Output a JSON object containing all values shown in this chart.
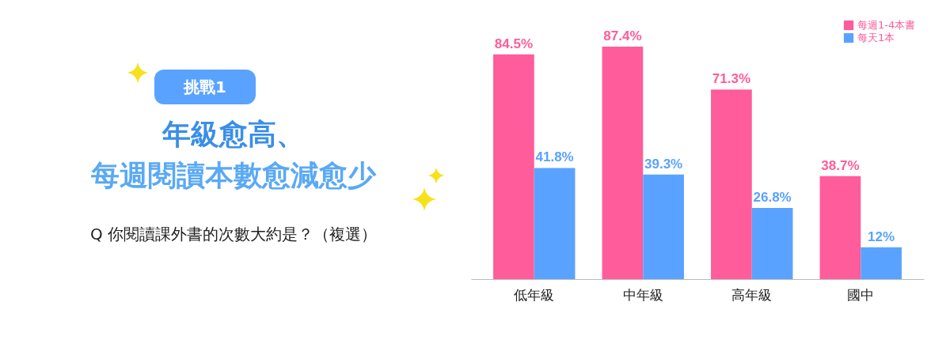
{
  "chart_data": {
    "type": "bar",
    "title": "年級愈高、",
    "subtitle": "每週閱讀本數愈減愈少",
    "annotations": [
      "挑戰1",
      "Q 你閱讀課外書的次數大約是？（複選）"
    ],
    "categories": [
      "低年級",
      "中年級",
      "高年級",
      "國中"
    ],
    "series": [
      {
        "name": "每週1-4本書",
        "color": "#ff5c9b",
        "values": [
          84.5,
          87.4,
          71.3,
          38.7
        ],
        "value_labels": [
          "84.5%",
          "87.4%",
          "71.3%",
          "38.7%"
        ]
      },
      {
        "name": "每天1本",
        "color": "#5aa2ff",
        "values": [
          41.8,
          39.3,
          26.8,
          12
        ],
        "value_labels": [
          "41.8%",
          "39.3%",
          "26.8%",
          "12%"
        ]
      }
    ],
    "legend": "top right",
    "grid": false
  }
}
